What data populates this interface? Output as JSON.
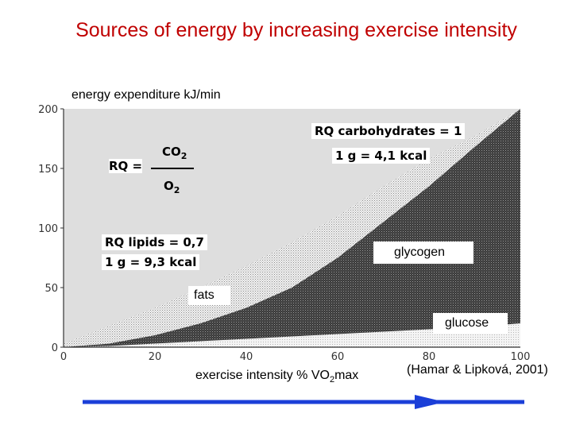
{
  "title": "Sources of energy by increasing exercise intensity",
  "chart_data": {
    "type": "area",
    "title": "Sources of energy by increasing exercise intensity",
    "ylabel": "energy expenditure kJ/min",
    "xlabel": "exercise intensity % VO2max",
    "xlim": [
      0,
      100
    ],
    "ylim": [
      0,
      200
    ],
    "xticks": [
      0,
      20,
      40,
      60,
      80,
      100
    ],
    "yticks": [
      0,
      50,
      100,
      150,
      200
    ],
    "x": [
      0,
      10,
      20,
      30,
      40,
      50,
      60,
      70,
      80,
      90,
      100
    ],
    "series": [
      {
        "name": "glucose",
        "values": [
          0,
          1,
          3,
          5,
          7,
          9,
          11,
          13,
          15,
          17,
          20
        ]
      },
      {
        "name": "glycogen",
        "values": [
          0,
          3,
          10,
          20,
          33,
          50,
          75,
          105,
          135,
          168,
          200
        ]
      },
      {
        "name": "fats",
        "values": [
          3,
          18,
          33,
          50,
          68,
          88,
          110,
          135,
          158,
          177,
          193
        ]
      }
    ],
    "annotations": {
      "rq_formula_label": "RQ =",
      "rq_numerator_main": "CO",
      "rq_numerator_sub": "2",
      "rq_denominator_main": "O",
      "rq_denominator_sub": "2",
      "rq_carbohydrates": "RQ carbohydrates = 1",
      "carb_energy": "1 g = 4,1 kcal",
      "rq_lipids": "RQ lipids = 0,7",
      "lipid_energy": "1 g = 9,3 kcal",
      "fats_label": "fats",
      "glycogen_label": "glycogen",
      "glucose_label": "glucose"
    }
  },
  "xlabel_main": "exercise intensity % VO",
  "xlabel_sub": "2",
  "xlabel_tail": "max",
  "citation": "(Hamar & Lipková, 2001)",
  "colors": {
    "title": "#c00000",
    "arrow": "#1b3fd8",
    "glycogen": "#4a4a4a",
    "fats": "#cfcfcf",
    "glucose": "#e8e8e8"
  }
}
